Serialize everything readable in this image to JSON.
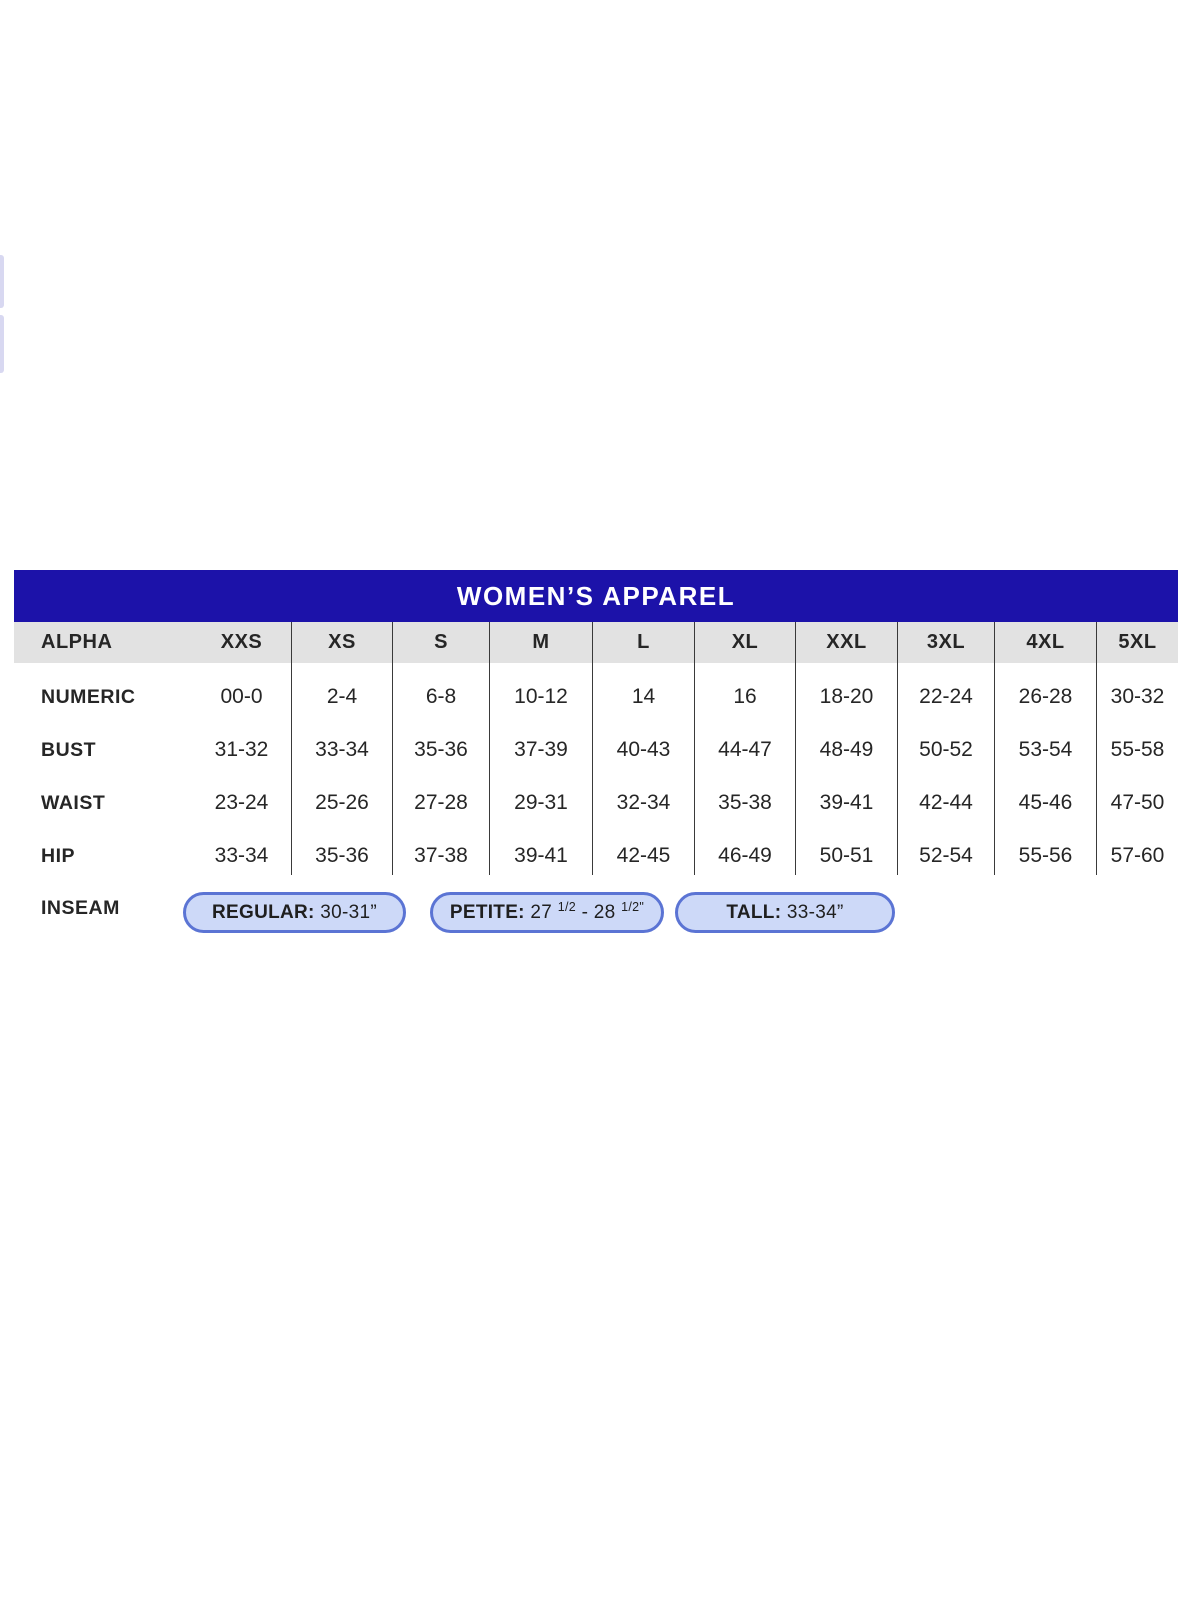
{
  "colors": {
    "title_bar_bg": "#1c12a9",
    "title_text": "#ffffff",
    "header_row_bg": "#e2e2e2",
    "table_text": "#262626",
    "divider_line": "#3a3a3a",
    "pill_fill": "#cdd9f8",
    "pill_border": "#5b74d4",
    "page_bg": "#ffffff",
    "edge_fragment": "#d8d8f1"
  },
  "chart_data": {
    "type": "table",
    "title": "WOMEN’S APPAREL",
    "columns": [
      "ALPHA",
      "XXS",
      "XS",
      "S",
      "M",
      "L",
      "XL",
      "XXL",
      "3XL",
      "4XL",
      "5XL"
    ],
    "rows": [
      {
        "label": "NUMERIC",
        "values": [
          "00-0",
          "2-4",
          "6-8",
          "10-12",
          "14",
          "16",
          "18-20",
          "22-24",
          "26-28",
          "30-32"
        ]
      },
      {
        "label": "BUST",
        "values": [
          "31-32",
          "33-34",
          "35-36",
          "37-39",
          "40-43",
          "44-47",
          "48-49",
          "50-52",
          "53-54",
          "55-58"
        ]
      },
      {
        "label": "WAIST",
        "values": [
          "23-24",
          "25-26",
          "27-28",
          "29-31",
          "32-34",
          "35-38",
          "39-41",
          "42-44",
          "45-46",
          "47-50"
        ]
      },
      {
        "label": "HIP",
        "values": [
          "33-34",
          "35-36",
          "37-38",
          "39-41",
          "42-45",
          "46-49",
          "50-51",
          "52-54",
          "55-56",
          "57-60"
        ]
      }
    ],
    "inseam": {
      "label": "INSEAM",
      "pills": [
        {
          "id": "regular",
          "prefix": "REGULAR:",
          "value": " 30-31”"
        },
        {
          "id": "petite",
          "prefix": "PETITE:",
          "num1": " 27 ",
          "frac1": "1/2",
          "num2": " - 28 ",
          "frac2": "1/2\""
        },
        {
          "id": "tall",
          "prefix": "TALL:",
          "value": " 33-34”"
        }
      ]
    }
  }
}
